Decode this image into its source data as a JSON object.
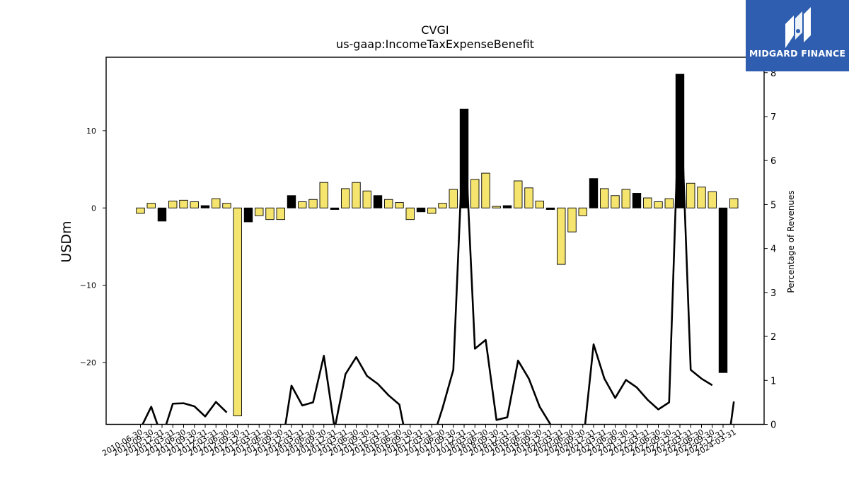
{
  "header": {
    "ticker": "CVGI",
    "concept": "us-gaap:IncomeTaxExpenseBenefit"
  },
  "brand": {
    "name": "MIDGARD FINANCE"
  },
  "chart_data": {
    "type": "bar",
    "title": "CVGI",
    "subtitle": "us-gaap:IncomeTaxExpenseBenefit",
    "ylabel": "USDm",
    "y2label": "Percentage of Revenues",
    "ylim": [
      -28,
      19.5
    ],
    "y2lim": [
      0,
      8.35
    ],
    "yticks": [
      -20,
      -10,
      0,
      10
    ],
    "y2ticks": [
      0,
      1,
      2,
      3,
      4,
      5,
      6,
      7,
      8
    ],
    "colors": {
      "quarterly": "#f5e46e",
      "annual": "#000000",
      "line": "#000000"
    },
    "categories": [
      "2010-06-30",
      "2010-09-30",
      "2010-12-31",
      "2011-03-31",
      "2011-06-30",
      "2011-09-30",
      "2011-12-31",
      "2012-03-31",
      "2012-06-30",
      "2012-09-30",
      "2012-12-31",
      "2013-03-31",
      "2013-06-30",
      "2013-09-30",
      "2013-12-31",
      "2014-03-31",
      "2014-06-30",
      "2014-09-30",
      "2014-12-31",
      "2015-03-31",
      "2015-06-30",
      "2015-09-30",
      "2015-12-31",
      "2016-03-31",
      "2016-06-30",
      "2016-09-30",
      "2016-12-31",
      "2017-03-31",
      "2017-06-30",
      "2017-09-30",
      "2017-12-31",
      "2018-03-31",
      "2018-06-30",
      "2018-09-30",
      "2018-12-31",
      "2019-03-31",
      "2019-06-30",
      "2019-09-30",
      "2019-12-31",
      "2020-03-31",
      "2020-06-30",
      "2020-09-30",
      "2020-12-31",
      "2021-03-31",
      "2021-06-30",
      "2021-09-30",
      "2021-12-31",
      "2022-03-31",
      "2022-06-30",
      "2022-09-30",
      "2022-12-31",
      "2023-03-31",
      "2023-06-30",
      "2023-09-30",
      "2023-12-31",
      "2024-03-31"
    ],
    "series": [
      {
        "values": [
          -0.7,
          0.6,
          -1.7,
          0.9,
          1.0,
          0.8,
          0.3,
          1.2,
          0.6,
          -26.9,
          -1.8,
          -1.0,
          -1.5,
          -1.5,
          1.6,
          0.8,
          1.1,
          3.3,
          -0.2,
          2.5,
          3.3,
          2.2,
          1.6,
          1.1,
          0.7,
          -1.5,
          -0.5,
          -0.7,
          0.6,
          2.4,
          12.8,
          3.7,
          4.5,
          0.2,
          0.3,
          3.5,
          2.6,
          0.9,
          -0.2,
          -7.3,
          -3.1,
          -1.0,
          3.8,
          2.5,
          1.6,
          2.4,
          1.9,
          1.3,
          0.8,
          1.2,
          17.3,
          3.2,
          2.7,
          2.1,
          -21.3,
          1.2
        ],
        "annual": [
          false,
          false,
          true,
          false,
          false,
          false,
          true,
          false,
          false,
          false,
          true,
          false,
          false,
          false,
          true,
          false,
          false,
          false,
          true,
          false,
          false,
          false,
          true,
          false,
          false,
          false,
          true,
          false,
          false,
          false,
          true,
          false,
          false,
          false,
          true,
          false,
          false,
          false,
          true,
          false,
          false,
          false,
          true,
          false,
          false,
          false,
          true,
          false,
          false,
          false,
          true,
          false,
          false,
          false,
          true,
          false
        ]
      },
      {
        "values": [
          -0.1,
          0.4,
          -0.3,
          0.47,
          0.48,
          0.41,
          0.18,
          0.51,
          0.27,
          -1.0,
          -1.0,
          -0.6,
          -0.7,
          -0.7,
          0.88,
          0.43,
          0.5,
          1.56,
          -0.1,
          1.14,
          1.53,
          1.1,
          0.92,
          0.66,
          0.45,
          -0.8,
          -0.5,
          -0.4,
          0.37,
          1.24,
          7.0,
          1.72,
          1.92,
          0.1,
          0.16,
          1.45,
          1.04,
          0.4,
          0.0,
          -1.5,
          -1.2,
          -0.5,
          1.82,
          1.04,
          0.6,
          1.01,
          0.84,
          0.56,
          0.34,
          0.5,
          7.9,
          1.24,
          1.04,
          0.89,
          -1.3,
          0.52
        ],
        "breaks": [
          8,
          53
        ]
      }
    ]
  }
}
